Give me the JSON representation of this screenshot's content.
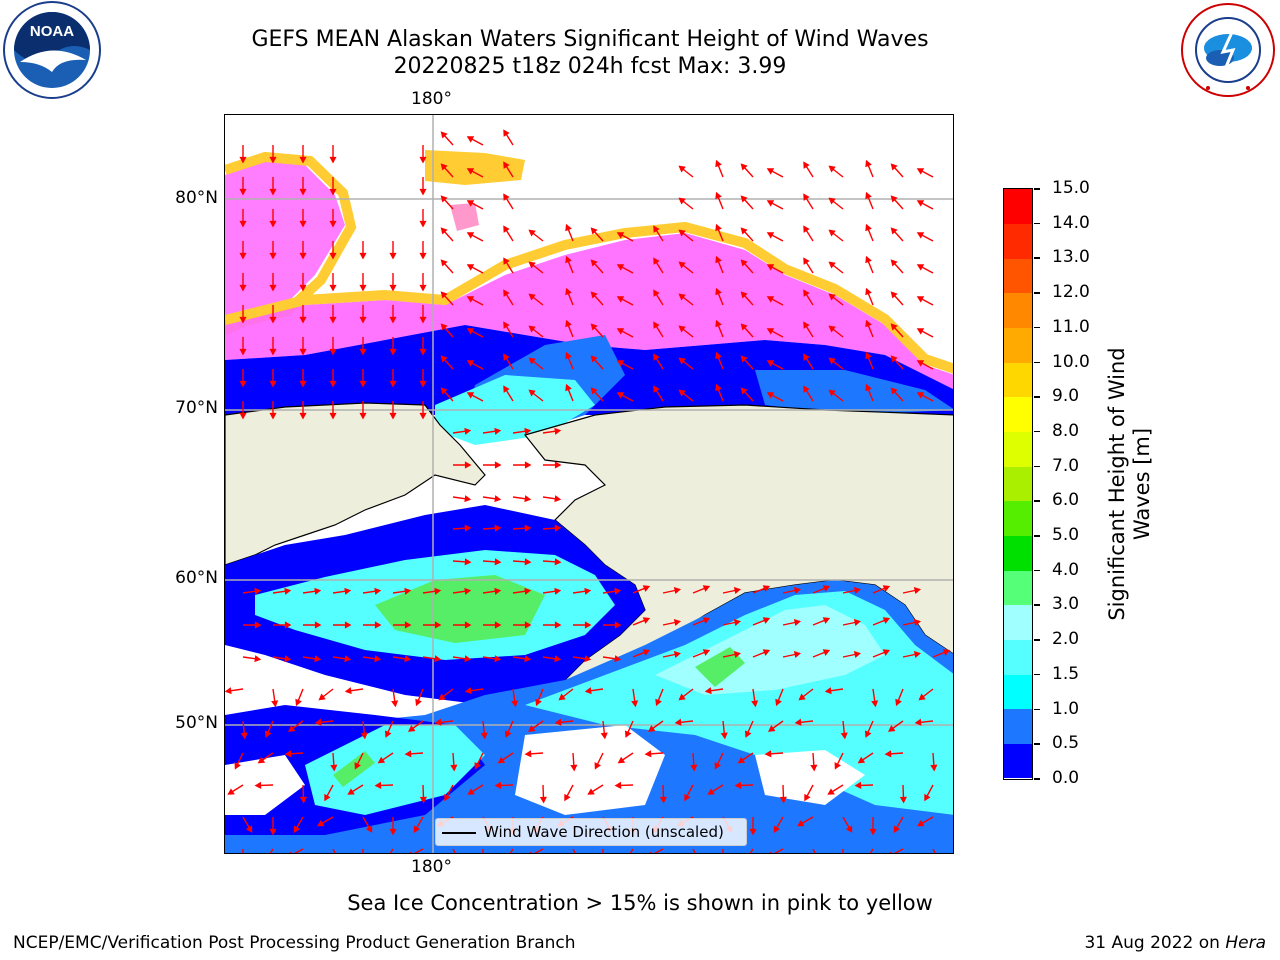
{
  "title": {
    "line1": "GEFS MEAN Alaskan Waters Significant Height of Wind Waves",
    "line2": "20220825 t18z 024h fcst   Max: 3.99"
  },
  "map": {
    "lon_label_top": "180°",
    "lon_label_bottom": "180°",
    "lat_labels": [
      "80°N",
      "70°N",
      "60°N",
      "50°N"
    ],
    "legend_label": "Wind Wave Direction (unscaled)",
    "note": "Sea Ice Concentration > 15% is shown in pink to yellow"
  },
  "colorbar": {
    "title_line1": "Significant Height of Wind",
    "title_line2": "Waves [m]",
    "ticks": [
      "0.0",
      "0.5",
      "1.0",
      "1.5",
      "2.0",
      "3.0",
      "4.0",
      "5.0",
      "6.0",
      "7.0",
      "8.0",
      "9.0",
      "10.0",
      "11.0",
      "12.0",
      "13.0",
      "14.0",
      "15.0"
    ],
    "colors": [
      "#0000ff",
      "#1e78ff",
      "#00ffff",
      "#55ffff",
      "#a0ffff",
      "#55ff77",
      "#00e000",
      "#55ee00",
      "#aaee00",
      "#ddff00",
      "#ffff00",
      "#ffd700",
      "#ffaa00",
      "#ff8800",
      "#ff5500",
      "#ff2a00",
      "#ff0000"
    ]
  },
  "footer": {
    "left": "NCEP/EMC/Verification Post Processing Product Generation Branch",
    "right_date": "31 Aug 2022 on ",
    "right_host": "Hera"
  },
  "logos": {
    "noaa_text": "NOAA",
    "nws_text": "NATIONAL WEATHER SERVICE"
  },
  "colors": {
    "land": "#eeeedd",
    "ice_pink": "#ff66ff",
    "ice_yellow": "#ffcc33",
    "arrow": "#ff0000",
    "grid": "#b0b0b0"
  }
}
